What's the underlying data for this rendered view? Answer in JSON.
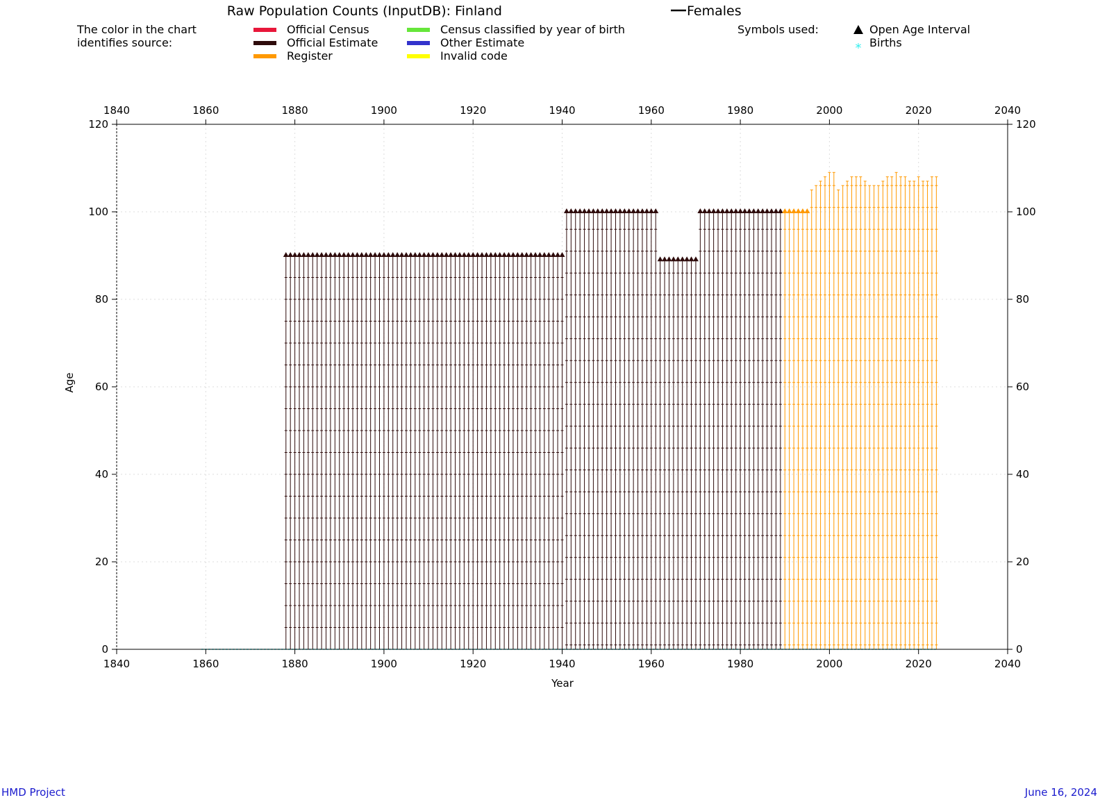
{
  "title": "Raw Population Counts (InputDB): Finland",
  "title_series": "Females",
  "legend": {
    "color_note_line1": "The color in the chart",
    "color_note_line2": "identifies source:",
    "sources": [
      {
        "label": "Official Census",
        "color": "#e8173a"
      },
      {
        "label": "Official Estimate",
        "color": "#2e0b0b"
      },
      {
        "label": "Register",
        "color": "#ff9900"
      },
      {
        "label": "Census classified by year of birth",
        "color": "#66e63a"
      },
      {
        "label": "Other Estimate",
        "color": "#3333cc"
      },
      {
        "label": "Invalid code",
        "color": "#ffff00"
      }
    ],
    "symbols_heading": "Symbols used:",
    "symbols": [
      {
        "label": "Open Age Interval",
        "glyph": "triangle"
      },
      {
        "label": "Births",
        "glyph": "asterisk",
        "color": "#33eeee"
      }
    ]
  },
  "footer": {
    "left": "HMD Project",
    "right": "June 16, 2024"
  },
  "chart_data": {
    "type": "scatter",
    "xlabel": "Year",
    "ylabel": "Age",
    "xlim": [
      1840,
      2040
    ],
    "ylim": [
      0,
      120
    ],
    "xticks": [
      "1840",
      "1860",
      "1880",
      "1900",
      "1920",
      "1940",
      "1960",
      "1980",
      "2000",
      "2020",
      "2040"
    ],
    "yticks": [
      "0",
      "20",
      "40",
      "60",
      "80",
      "100",
      "120"
    ],
    "grid": true,
    "series": [
      {
        "source": "Official Estimate",
        "color": "#2e0b0b",
        "years": [
          1878,
          1940
        ],
        "age_step": 5,
        "open_age": 90
      },
      {
        "source": "Official Estimate",
        "color": "#2e0b0b",
        "years": [
          1941,
          1961
        ],
        "age_step": 1,
        "open_age": 100
      },
      {
        "source": "Official Estimate",
        "color": "#2e0b0b",
        "years": [
          1962,
          1970
        ],
        "age_step": 1,
        "open_age": 89
      },
      {
        "source": "Official Estimate",
        "color": "#2e0b0b",
        "years": [
          1971,
          1989
        ],
        "age_step": 1,
        "open_age": 100
      },
      {
        "source": "Register",
        "color": "#ff9900",
        "years": [
          1990,
          1995
        ],
        "age_step": 1,
        "open_age": 100
      },
      {
        "source": "Register",
        "color": "#ff9900",
        "years": [
          1996,
          2024
        ],
        "age_step": 1,
        "max_age": [
          105,
          106,
          107,
          108,
          109,
          109,
          105,
          106,
          107,
          108,
          108,
          108,
          107,
          106,
          106,
          106,
          107,
          108,
          108,
          109,
          108,
          108,
          107,
          107,
          108,
          107,
          107,
          108,
          108
        ]
      }
    ],
    "births": {
      "color": "#33eeee",
      "years": [
        1859,
        2024
      ],
      "age": 0
    }
  }
}
